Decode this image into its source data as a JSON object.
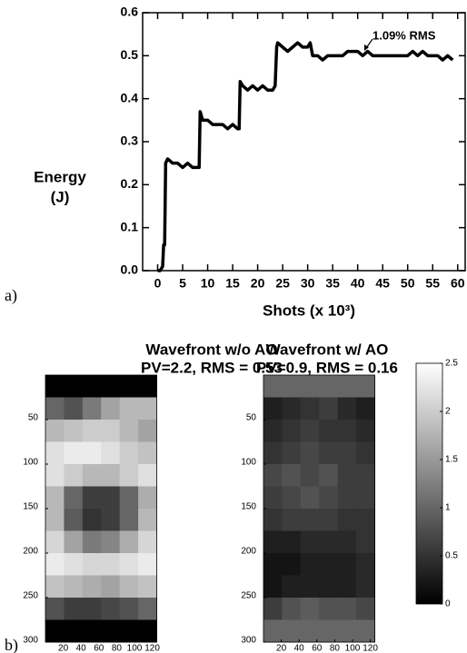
{
  "chart_data": [
    {
      "type": "line",
      "panel_label": "a)",
      "xlabel": "Shots (x 10³)",
      "ylabel": [
        "Energy",
        "(J)"
      ],
      "annotation": "1.09% RMS",
      "color": "#000000",
      "xlim": [
        -3,
        61.5
      ],
      "ylim": [
        0,
        0.6
      ],
      "xticks": [
        0,
        5,
        10,
        15,
        20,
        25,
        30,
        35,
        40,
        45,
        50,
        55,
        60
      ],
      "yticks": [
        {
          "value": 0,
          "label": "0.0"
        },
        0.1,
        0.2,
        0.3,
        0.4,
        0.5,
        0.6
      ],
      "x": [
        0,
        0.5,
        1,
        1.2,
        1.4,
        1.6,
        2,
        3,
        4,
        5,
        6,
        7,
        8,
        8.3,
        8.5,
        9,
        10,
        11,
        12,
        13,
        14,
        15,
        16,
        16.3,
        16.5,
        17,
        18,
        19,
        20,
        21,
        22,
        23,
        23.5,
        23.8,
        24,
        25,
        26,
        27,
        28,
        29,
        30,
        30.5,
        31,
        32,
        33,
        34,
        35,
        36,
        37,
        38,
        39,
        40,
        41,
        42,
        43,
        44,
        45,
        46,
        47,
        48,
        49,
        50,
        51,
        52,
        53,
        54,
        55,
        56,
        57,
        58,
        59
      ],
      "values": [
        0,
        0,
        0.01,
        0.06,
        0.06,
        0.25,
        0.26,
        0.25,
        0.25,
        0.24,
        0.25,
        0.24,
        0.24,
        0.24,
        0.37,
        0.35,
        0.35,
        0.34,
        0.34,
        0.34,
        0.33,
        0.34,
        0.33,
        0.33,
        0.44,
        0.43,
        0.42,
        0.43,
        0.42,
        0.43,
        0.42,
        0.42,
        0.43,
        0.52,
        0.53,
        0.52,
        0.51,
        0.52,
        0.53,
        0.52,
        0.52,
        0.53,
        0.5,
        0.5,
        0.49,
        0.5,
        0.5,
        0.5,
        0.5,
        0.51,
        0.51,
        0.51,
        0.5,
        0.51,
        0.5,
        0.5,
        0.5,
        0.5,
        0.5,
        0.5,
        0.5,
        0.5,
        0.51,
        0.5,
        0.51,
        0.5,
        0.5,
        0.5,
        0.49,
        0.5,
        0.49
      ]
    },
    {
      "type": "heatmap",
      "panel_label": "b)",
      "title": [
        "Wavefront w/o AO",
        "PV=2.2, RMS = 0.53"
      ],
      "colormap": "gray",
      "xlim": [
        0,
        125
      ],
      "ylim": [
        0,
        300
      ],
      "y_reversed": true,
      "zlim": [
        0,
        2.5
      ],
      "xticks": [
        20,
        40,
        60,
        80,
        100,
        120
      ],
      "yticks": [
        50,
        100,
        150,
        200,
        250,
        300
      ],
      "z": [
        [
          0,
          0,
          0,
          0,
          0,
          0
        ],
        [
          1.0,
          0.8,
          1.2,
          1.6,
          1.8,
          1.8
        ],
        [
          1.8,
          1.9,
          2.0,
          2.0,
          1.8,
          1.6
        ],
        [
          2.2,
          2.3,
          2.3,
          2.2,
          2.0,
          1.9
        ],
        [
          2.2,
          2.0,
          1.8,
          1.8,
          2.0,
          2.2
        ],
        [
          1.8,
          1.0,
          0.6,
          0.6,
          1.0,
          1.7
        ],
        [
          1.8,
          0.9,
          0.5,
          0.6,
          1.0,
          1.8
        ],
        [
          2.1,
          1.6,
          1.2,
          1.3,
          1.7,
          2.1
        ],
        [
          2.3,
          2.2,
          2.1,
          2.1,
          2.2,
          2.3
        ],
        [
          1.9,
          1.8,
          1.7,
          1.6,
          1.8,
          1.9
        ],
        [
          0.8,
          0.6,
          0.6,
          0.7,
          0.8,
          1.0
        ],
        [
          0,
          0,
          0,
          0,
          0,
          0
        ]
      ]
    },
    {
      "type": "heatmap",
      "title": [
        "Wavefront w/ AO",
        "PV=0.9, RMS = 0.16"
      ],
      "colormap": "gray",
      "xlim": [
        0,
        125
      ],
      "ylim": [
        0,
        300
      ],
      "y_reversed": true,
      "zlim": [
        0,
        2.5
      ],
      "xticks": [
        20,
        40,
        60,
        80,
        100,
        120
      ],
      "yticks": [
        50,
        100,
        150,
        200,
        250,
        300
      ],
      "colorbar_ticks": [
        0,
        0.5,
        1,
        1.5,
        2,
        2.5
      ],
      "z": [
        [
          1.0,
          1.0,
          1.0,
          1.0,
          1.0,
          1.0
        ],
        [
          0.3,
          0.4,
          0.5,
          0.6,
          0.4,
          0.3
        ],
        [
          0.4,
          0.5,
          0.6,
          0.5,
          0.5,
          0.4
        ],
        [
          0.5,
          0.6,
          0.7,
          0.6,
          0.6,
          0.5
        ],
        [
          0.7,
          0.8,
          0.7,
          0.8,
          0.6,
          0.6
        ],
        [
          0.6,
          0.7,
          0.8,
          0.7,
          0.6,
          0.6
        ],
        [
          0.5,
          0.6,
          0.6,
          0.6,
          0.5,
          0.5
        ],
        [
          0.3,
          0.3,
          0.4,
          0.4,
          0.4,
          0.5
        ],
        [
          0.2,
          0.2,
          0.3,
          0.3,
          0.3,
          0.4
        ],
        [
          0.2,
          0.3,
          0.3,
          0.3,
          0.3,
          0.4
        ],
        [
          0.6,
          0.8,
          0.9,
          0.8,
          0.8,
          0.7
        ],
        [
          1.0,
          1.0,
          1.0,
          1.0,
          1.0,
          1.0
        ]
      ]
    }
  ]
}
